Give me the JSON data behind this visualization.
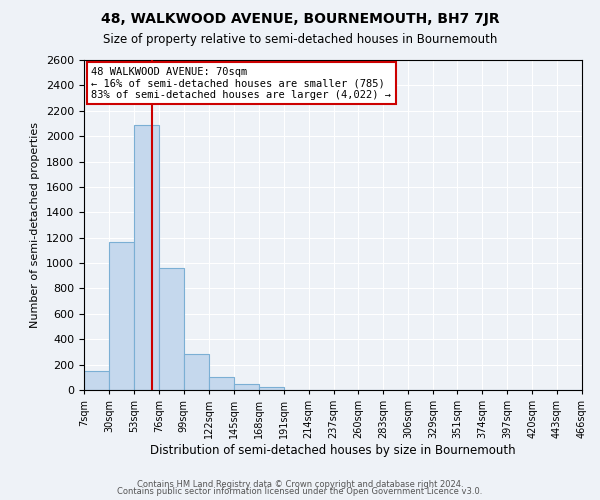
{
  "title": "48, WALKWOOD AVENUE, BOURNEMOUTH, BH7 7JR",
  "subtitle": "Size of property relative to semi-detached houses in Bournemouth",
  "xlabel": "Distribution of semi-detached houses by size in Bournemouth",
  "ylabel": "Number of semi-detached properties",
  "bin_edges": [
    7,
    30,
    53,
    76,
    99,
    122,
    145,
    168,
    191,
    214,
    237,
    260,
    283,
    306,
    329,
    351,
    374,
    397,
    420,
    443,
    466
  ],
  "bin_labels": [
    "7sqm",
    "30sqm",
    "53sqm",
    "76sqm",
    "99sqm",
    "122sqm",
    "145sqm",
    "168sqm",
    "191sqm",
    "214sqm",
    "237sqm",
    "260sqm",
    "283sqm",
    "306sqm",
    "329sqm",
    "351sqm",
    "374sqm",
    "397sqm",
    "420sqm",
    "443sqm",
    "466sqm"
  ],
  "bar_values": [
    150,
    1170,
    2090,
    960,
    280,
    100,
    45,
    20,
    0,
    0,
    0,
    0,
    0,
    0,
    0,
    0,
    0,
    0,
    0,
    0
  ],
  "bar_color": "#c5d8ed",
  "bar_edge_color": "#7bafd4",
  "annotation_title": "48 WALKWOOD AVENUE: 70sqm",
  "annotation_line1": "← 16% of semi-detached houses are smaller (785)",
  "annotation_line2": "83% of semi-detached houses are larger (4,022) →",
  "annotation_box_color": "#ffffff",
  "annotation_box_edge": "#cc0000",
  "vline_color": "#cc0000",
  "property_sqm": 70,
  "ylim": [
    0,
    2600
  ],
  "yticks": [
    0,
    200,
    400,
    600,
    800,
    1000,
    1200,
    1400,
    1600,
    1800,
    2000,
    2200,
    2400,
    2600
  ],
  "footer1": "Contains HM Land Registry data © Crown copyright and database right 2024.",
  "footer2": "Contains public sector information licensed under the Open Government Licence v3.0.",
  "bg_color": "#eef2f7",
  "plot_bg_color": "#eef2f7"
}
